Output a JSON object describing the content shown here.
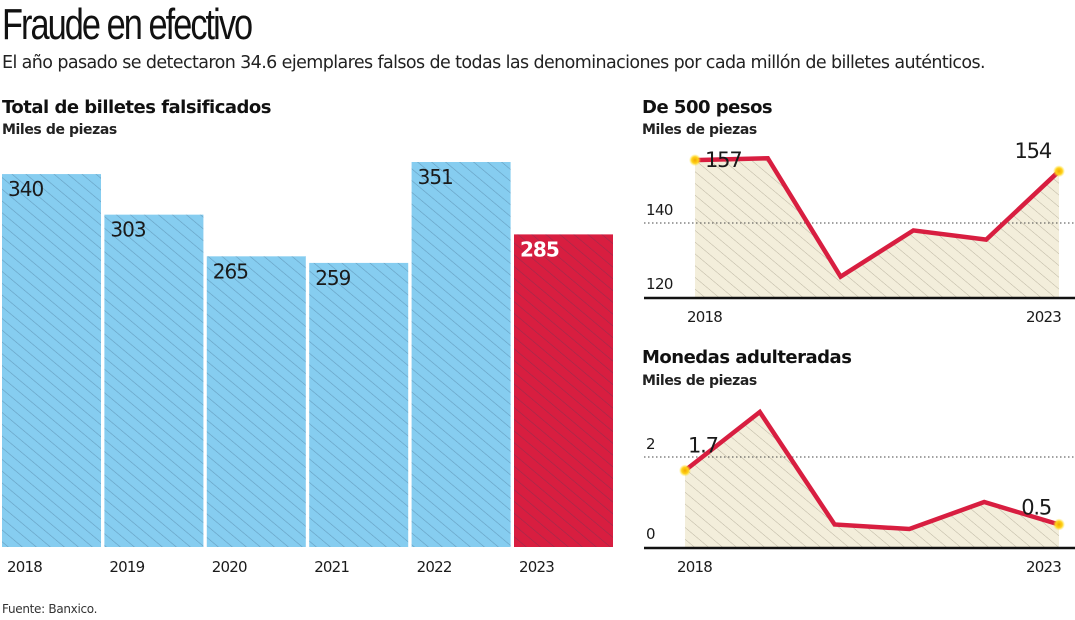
{
  "header": {
    "title": "Fraude en efectivo",
    "subtitle": "El año pasado se detectaron 34.6 ejemplares falsos de todas las denominaciones por cada millón de billetes auténticos."
  },
  "footer": {
    "source": "Fuente: Banxico."
  },
  "colors": {
    "bar": "#86cdf0",
    "bar_highlight": "#d81e40",
    "line": "#d81e40",
    "area": "#f3eedb",
    "marker": "#f7c600"
  },
  "chart_data": [
    {
      "type": "bar",
      "title": "Total de billetes falsificados",
      "ylabel": "Miles de piezas",
      "xlabel": "",
      "categories": [
        "2018",
        "2019",
        "2020",
        "2021",
        "2022",
        "2023"
      ],
      "values": [
        340,
        303,
        265,
        259,
        351,
        285
      ],
      "data_labels": [
        "340",
        "303",
        "265",
        "259",
        "351",
        "285"
      ],
      "highlight_index": 5,
      "ylim": [
        0,
        351
      ],
      "grid": false
    },
    {
      "type": "area",
      "title": "De 500 pesos",
      "ylabel": "Miles de piezas",
      "categories": [
        "2018",
        "2019",
        "2020",
        "2021",
        "2022",
        "2023"
      ],
      "values": [
        157,
        157.5,
        125.5,
        138,
        135.5,
        154
      ],
      "x_tick_labels": [
        "2018",
        "2023"
      ],
      "y_ticks": [
        120,
        140
      ],
      "y_tick_labels": [
        "120",
        "140"
      ],
      "ylim": [
        120,
        160
      ],
      "annotations": [
        {
          "index": 0,
          "text": "157"
        },
        {
          "index": 5,
          "text": "154"
        }
      ],
      "grid": "dotted at 140"
    },
    {
      "type": "area",
      "title": "Monedas adulteradas",
      "ylabel": "Miles de piezas",
      "categories": [
        "2018",
        "2019",
        "2020",
        "2021",
        "2022",
        "2023"
      ],
      "values": [
        1.7,
        3.0,
        0.5,
        0.4,
        1.0,
        0.5
      ],
      "x_tick_labels": [
        "2018",
        "2023"
      ],
      "y_ticks": [
        0,
        2
      ],
      "y_tick_labels": [
        "0",
        "2"
      ],
      "ylim": [
        0,
        3.2
      ],
      "annotations": [
        {
          "index": 0,
          "text": "1.7"
        },
        {
          "index": 5,
          "text": "0.5"
        }
      ],
      "grid": "dotted at 2"
    }
  ]
}
